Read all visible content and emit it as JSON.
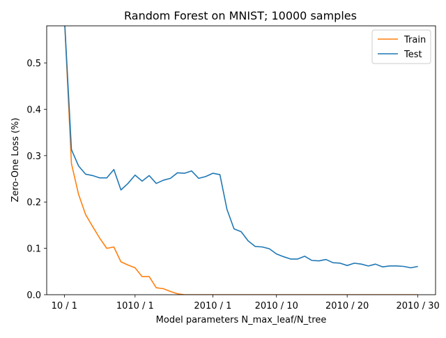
{
  "chart_data": {
    "type": "line",
    "title": "Random Forest on MNIST; 10000 samples",
    "xlabel": "Model parameters N_max_leaf/N_tree",
    "ylabel": "Zero-One Loss (%)",
    "xlim": [
      -2.5,
      52.5
    ],
    "ylim": [
      0,
      0.58
    ],
    "grid": false,
    "legend_position": "top-right",
    "x": [
      0,
      1,
      2,
      3,
      4,
      5,
      6,
      7,
      8,
      9,
      10,
      11,
      12,
      13,
      14,
      15,
      16,
      17,
      18,
      19,
      20,
      21,
      22,
      23,
      24,
      25,
      26,
      27,
      28,
      29,
      30,
      31,
      32,
      33,
      34,
      35,
      36,
      37,
      38,
      39,
      40,
      41,
      42,
      43,
      44,
      45,
      46,
      47,
      48,
      49,
      50
    ],
    "xticks": [
      {
        "x": 0,
        "label": "10 / 1"
      },
      {
        "x": 10,
        "label": "1010 / 1"
      },
      {
        "x": 21,
        "label": "2010 / 1"
      },
      {
        "x": 30,
        "label": "2010 / 10"
      },
      {
        "x": 40,
        "label": "2010 / 20"
      },
      {
        "x": 50,
        "label": "2010 / 30"
      }
    ],
    "yticks": [
      0.0,
      0.1,
      0.2,
      0.3,
      0.4,
      0.5
    ],
    "ytick_labels": [
      "0.0",
      "0.1",
      "0.2",
      "0.3",
      "0.4",
      "0.5"
    ],
    "series": [
      {
        "name": "Train",
        "color": "#ff7f0e",
        "values": [
          0.6,
          0.283,
          0.217,
          0.173,
          0.147,
          0.122,
          0.1,
          0.103,
          0.071,
          0.064,
          0.058,
          0.039,
          0.039,
          0.015,
          0.013,
          0.007,
          0.002,
          0,
          0,
          0,
          0,
          0,
          0,
          0,
          0,
          0,
          0,
          0,
          0,
          0,
          0,
          0,
          0,
          0,
          0,
          0,
          0,
          0,
          0,
          0,
          0,
          0,
          0,
          0,
          0,
          0,
          0,
          0,
          0,
          0,
          0
        ]
      },
      {
        "name": "Test",
        "color": "#1f77b4",
        "values": [
          0.6,
          0.313,
          0.278,
          0.26,
          0.257,
          0.252,
          0.252,
          0.27,
          0.226,
          0.24,
          0.258,
          0.245,
          0.257,
          0.24,
          0.247,
          0.251,
          0.263,
          0.262,
          0.267,
          0.251,
          0.255,
          0.262,
          0.259,
          0.184,
          0.142,
          0.136,
          0.116,
          0.104,
          0.103,
          0.099,
          0.088,
          0.082,
          0.077,
          0.077,
          0.083,
          0.074,
          0.073,
          0.076,
          0.069,
          0.068,
          0.063,
          0.068,
          0.066,
          0.062,
          0.066,
          0.06,
          0.062,
          0.062,
          0.061,
          0.058,
          0.061
        ]
      }
    ]
  }
}
